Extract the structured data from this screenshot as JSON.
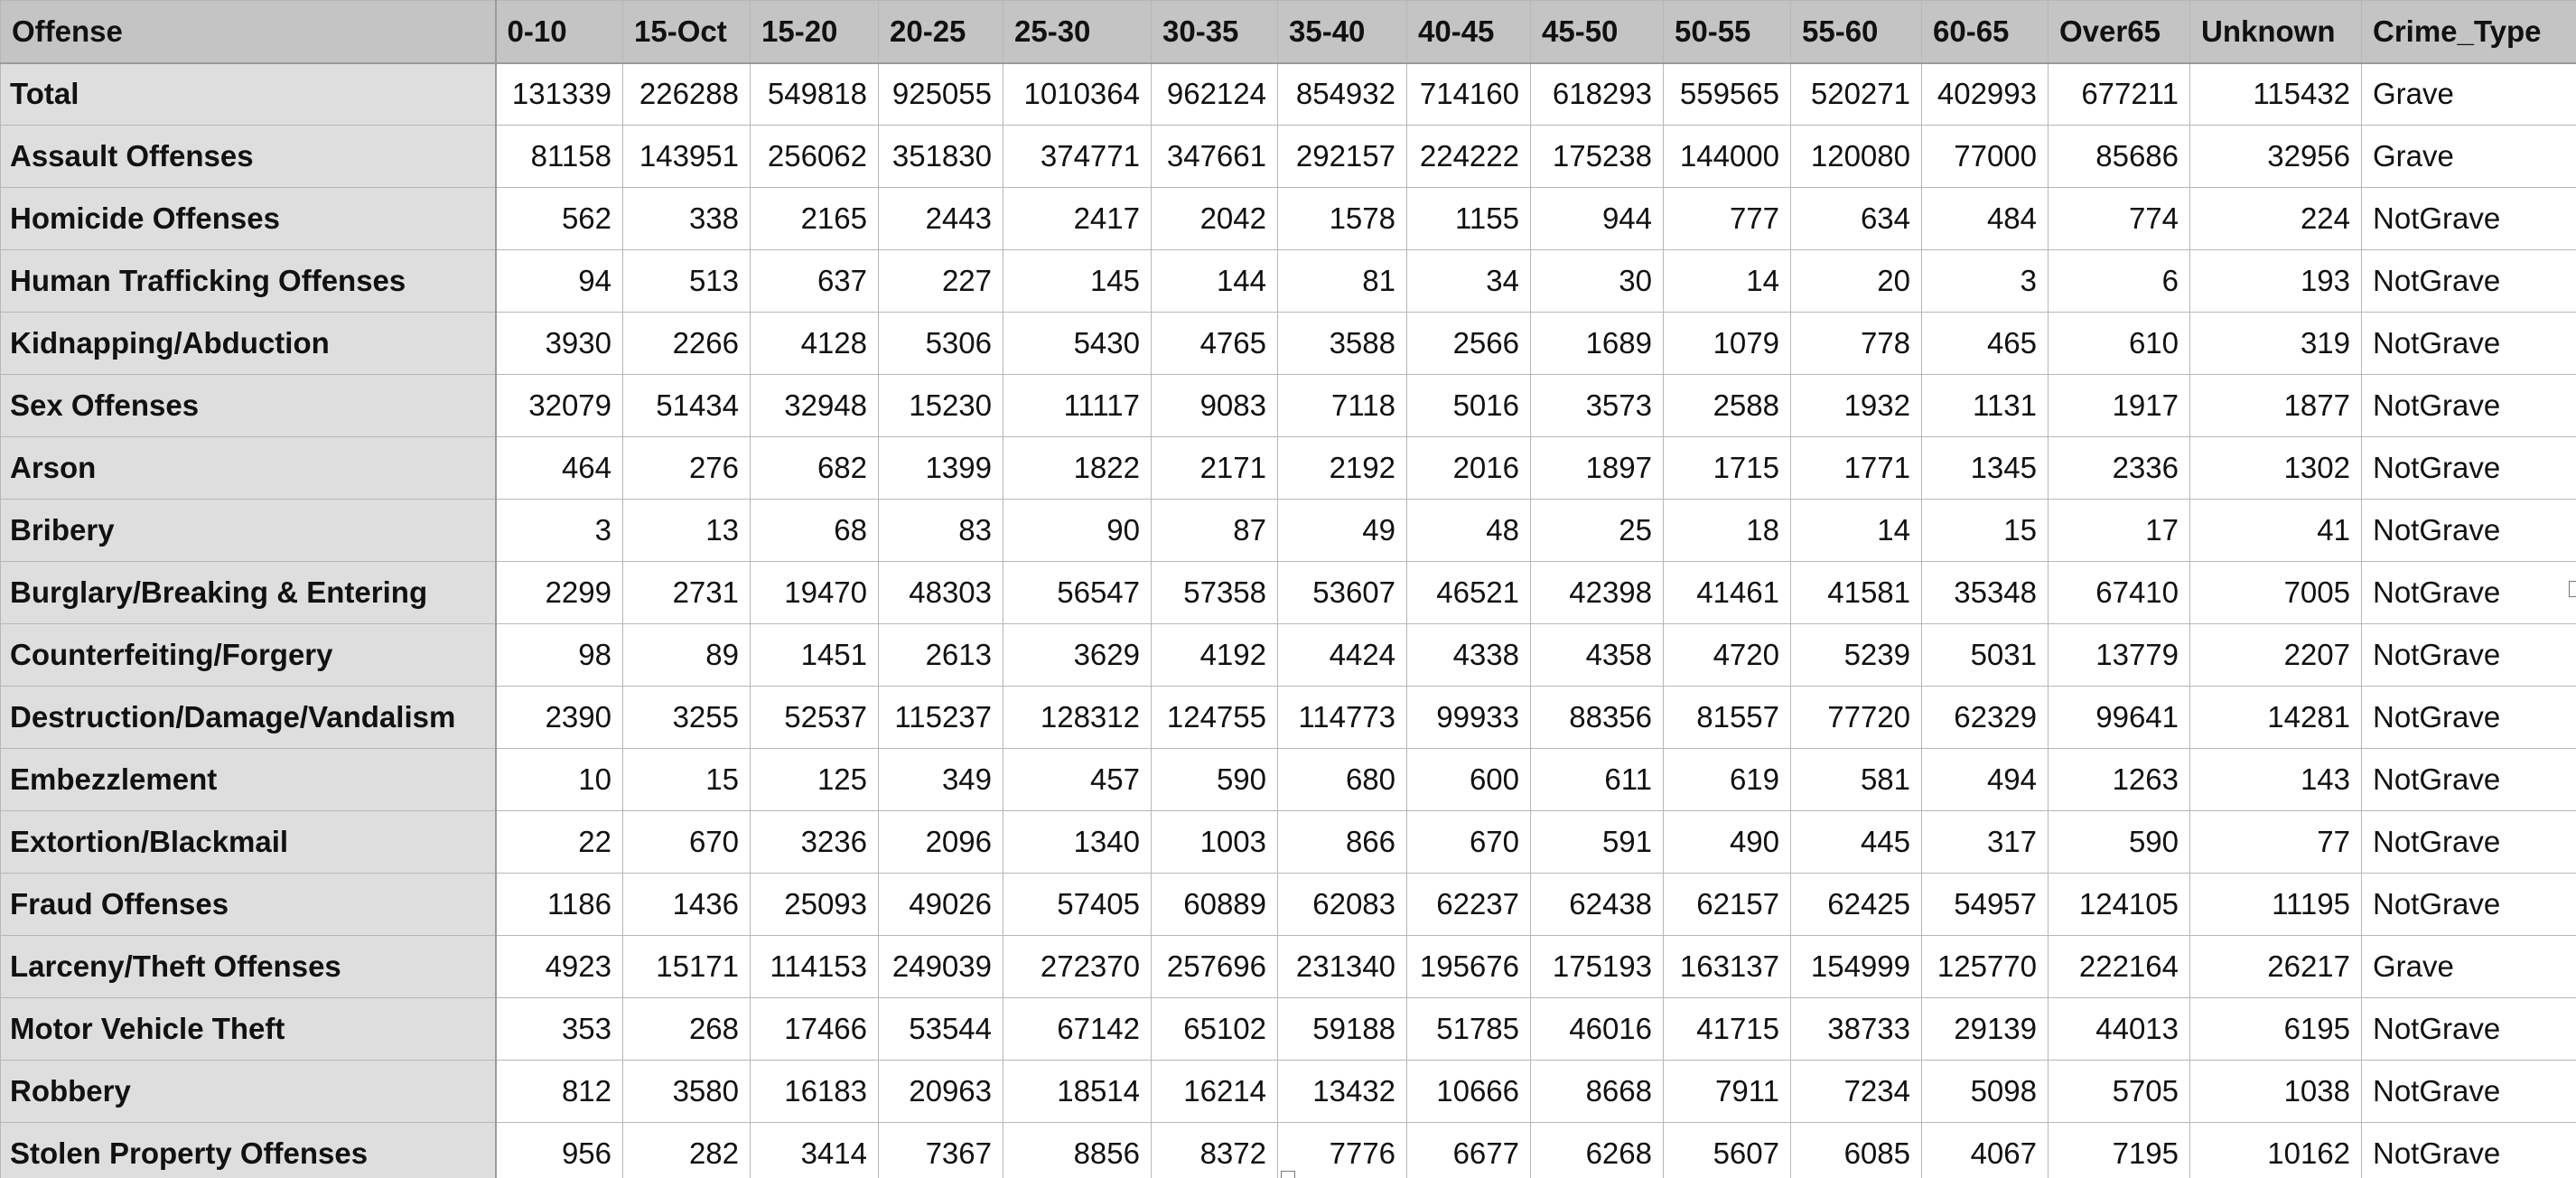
{
  "columns": [
    "Offense",
    "0-10",
    "15-Oct",
    "15-20",
    "20-25",
    "25-30",
    "30-35",
    "35-40",
    "40-45",
    "45-50",
    "50-55",
    "55-60",
    "60-65",
    "Over65",
    "Unknown",
    "Crime_Type"
  ],
  "rows": [
    {
      "offense": "Total",
      "values": [
        131339,
        226288,
        549818,
        925055,
        1010364,
        962124,
        854932,
        714160,
        618293,
        559565,
        520271,
        402993,
        677211,
        115432
      ],
      "type": "Grave"
    },
    {
      "offense": "Assault Offenses",
      "values": [
        81158,
        143951,
        256062,
        351830,
        374771,
        347661,
        292157,
        224222,
        175238,
        144000,
        120080,
        77000,
        85686,
        32956
      ],
      "type": "Grave"
    },
    {
      "offense": "Homicide Offenses",
      "values": [
        562,
        338,
        2165,
        2443,
        2417,
        2042,
        1578,
        1155,
        944,
        777,
        634,
        484,
        774,
        224
      ],
      "type": "NotGrave"
    },
    {
      "offense": "Human Trafficking Offenses",
      "values": [
        94,
        513,
        637,
        227,
        145,
        144,
        81,
        34,
        30,
        14,
        20,
        3,
        6,
        193
      ],
      "type": "NotGrave"
    },
    {
      "offense": "Kidnapping/Abduction",
      "values": [
        3930,
        2266,
        4128,
        5306,
        5430,
        4765,
        3588,
        2566,
        1689,
        1079,
        778,
        465,
        610,
        319
      ],
      "type": "NotGrave"
    },
    {
      "offense": "Sex Offenses",
      "values": [
        32079,
        51434,
        32948,
        15230,
        11117,
        9083,
        7118,
        5016,
        3573,
        2588,
        1932,
        1131,
        1917,
        1877
      ],
      "type": "NotGrave"
    },
    {
      "offense": "Arson",
      "values": [
        464,
        276,
        682,
        1399,
        1822,
        2171,
        2192,
        2016,
        1897,
        1715,
        1771,
        1345,
        2336,
        1302
      ],
      "type": "NotGrave"
    },
    {
      "offense": "Bribery",
      "values": [
        3,
        13,
        68,
        83,
        90,
        87,
        49,
        48,
        25,
        18,
        14,
        15,
        17,
        41
      ],
      "type": "NotGrave"
    },
    {
      "offense": "Burglary/Breaking & Entering",
      "values": [
        2299,
        2731,
        19470,
        48303,
        56547,
        57358,
        53607,
        46521,
        42398,
        41461,
        41581,
        35348,
        67410,
        7005
      ],
      "type": "NotGrave"
    },
    {
      "offense": "Counterfeiting/Forgery",
      "values": [
        98,
        89,
        1451,
        2613,
        3629,
        4192,
        4424,
        4338,
        4358,
        4720,
        5239,
        5031,
        13779,
        2207
      ],
      "type": "NotGrave"
    },
    {
      "offense": "Destruction/Damage/Vandalism",
      "values": [
        2390,
        3255,
        52537,
        115237,
        128312,
        124755,
        114773,
        99933,
        88356,
        81557,
        77720,
        62329,
        99641,
        14281
      ],
      "type": "NotGrave"
    },
    {
      "offense": "Embezzlement",
      "values": [
        10,
        15,
        125,
        349,
        457,
        590,
        680,
        600,
        611,
        619,
        581,
        494,
        1263,
        143
      ],
      "type": "NotGrave"
    },
    {
      "offense": "Extortion/Blackmail",
      "values": [
        22,
        670,
        3236,
        2096,
        1340,
        1003,
        866,
        670,
        591,
        490,
        445,
        317,
        590,
        77
      ],
      "type": "NotGrave"
    },
    {
      "offense": "Fraud Offenses",
      "values": [
        1186,
        1436,
        25093,
        49026,
        57405,
        60889,
        62083,
        62237,
        62438,
        62157,
        62425,
        54957,
        124105,
        11195
      ],
      "type": "NotGrave"
    },
    {
      "offense": "Larceny/Theft Offenses",
      "values": [
        4923,
        15171,
        114153,
        249039,
        272370,
        257696,
        231340,
        195676,
        175193,
        163137,
        154999,
        125770,
        222164,
        26217
      ],
      "type": "Grave"
    },
    {
      "offense": "Motor Vehicle Theft",
      "values": [
        353,
        268,
        17466,
        53544,
        67142,
        65102,
        59188,
        51785,
        46016,
        41715,
        38733,
        29139,
        44013,
        6195
      ],
      "type": "NotGrave"
    },
    {
      "offense": "Robbery",
      "values": [
        812,
        3580,
        16183,
        20963,
        18514,
        16214,
        13432,
        10666,
        8668,
        7911,
        7234,
        5098,
        5705,
        1038
      ],
      "type": "NotGrave"
    },
    {
      "offense": "Stolen Property Offenses",
      "values": [
        956,
        282,
        3414,
        7367,
        8856,
        8372,
        7776,
        6677,
        6268,
        5607,
        6085,
        4067,
        7195,
        10162
      ],
      "type": "NotGrave"
    }
  ]
}
